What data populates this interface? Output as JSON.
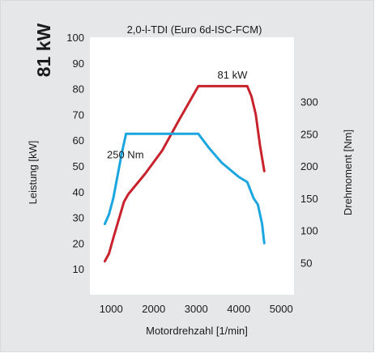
{
  "chart_data": {
    "type": "line",
    "title": "2,0-l-TDI (Euro 6d-ISC-FCM)",
    "big_label": "81 kW",
    "xlabel": "Motordrehzahl [1/min]",
    "ylabel_left": "Leistung [kW]",
    "ylabel_right": "Drehmoment [Nm]",
    "xlim": [
      500,
      5300
    ],
    "ylim_left": [
      0,
      100
    ],
    "ylim_right": [
      0,
      400
    ],
    "x_ticks": [
      "1000",
      "2000",
      "3000",
      "4000",
      "5000"
    ],
    "y_left_ticks": [
      "10",
      "20",
      "30",
      "40",
      "50",
      "60",
      "70",
      "80",
      "90",
      "100"
    ],
    "y_right_ticks": [
      "50",
      "100",
      "150",
      "200",
      "250",
      "300"
    ],
    "grid": false,
    "colors": {
      "power": "#c8232c",
      "torque": "#1ca6e0",
      "plot_bg": "#ffffff",
      "frame_bg": "#e6e7e8"
    },
    "series": [
      {
        "key": "power",
        "axis": "left",
        "x": [
          850,
          950,
          1050,
          1300,
          1400,
          1800,
          2200,
          2600,
          3050,
          4200,
          4300,
          4400,
          4500,
          4600
        ],
        "y": [
          13,
          16,
          22,
          36,
          39,
          47,
          56,
          68,
          81,
          81,
          77,
          70,
          58,
          48
        ]
      },
      {
        "key": "torque",
        "axis": "right",
        "x": [
          850,
          950,
          1050,
          1250,
          1350,
          3050,
          3300,
          3600,
          4000,
          4200,
          4350,
          4450,
          4550,
          4600
        ],
        "y": [
          110,
          125,
          150,
          220,
          250,
          250,
          228,
          205,
          183,
          175,
          150,
          140,
          110,
          80
        ]
      }
    ],
    "annotations": [
      {
        "text": "81 kW",
        "series": "power",
        "x": 3500,
        "y": 84
      },
      {
        "text": "250 Nm",
        "series": "torque",
        "x": 900,
        "y": 53
      }
    ]
  }
}
